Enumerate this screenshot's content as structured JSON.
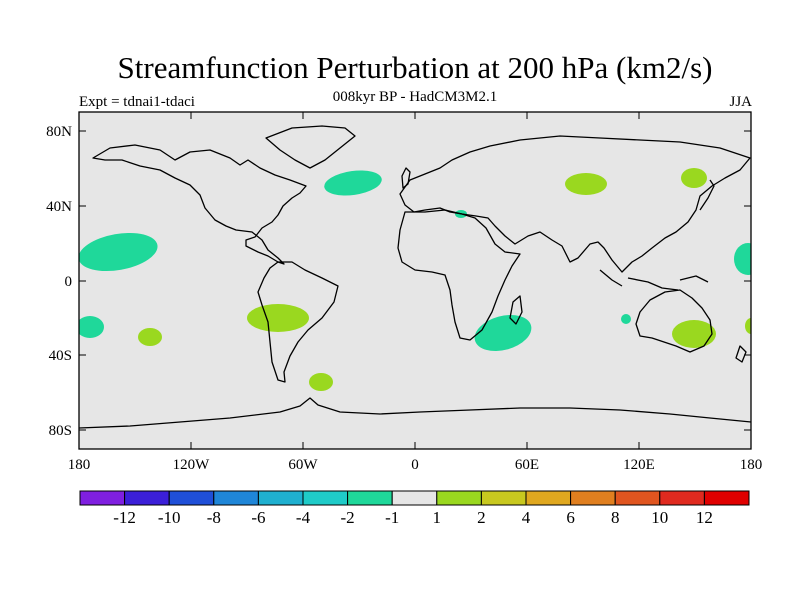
{
  "title": "Streamfunction Perturbation at 200 hPa (km2/s)",
  "subtitle": "008kyr BP - HadCM3M2.1",
  "expt_label": "Expt = tdnai1-tdaci",
  "season": "JJA",
  "lat_ticks": [
    "80N",
    "40N",
    "0",
    "40S",
    "80S"
  ],
  "lon_ticks": [
    "180",
    "120W",
    "60W",
    "0",
    "60E",
    "120E",
    "180"
  ],
  "colorbar": {
    "labels": [
      "-12",
      "-10",
      "-8",
      "-6",
      "-4",
      "-2",
      "-1",
      "1",
      "2",
      "4",
      "6",
      "8",
      "10",
      "12"
    ],
    "colors": [
      "#7f1fe0",
      "#3b1fd8",
      "#1f4fd8",
      "#1f86d8",
      "#1fb0d0",
      "#1fcbc8",
      "#1fd89a",
      "#e6e6e6",
      "#9ad81f",
      "#c8c81f",
      "#e0a81f",
      "#e07f1f",
      "#e0551f",
      "#e02a1f",
      "#e00000"
    ]
  },
  "colors": {
    "background": "#e6e6e6",
    "negative_fill": "#1fd89a",
    "positive_fill": "#9ad81f"
  }
}
